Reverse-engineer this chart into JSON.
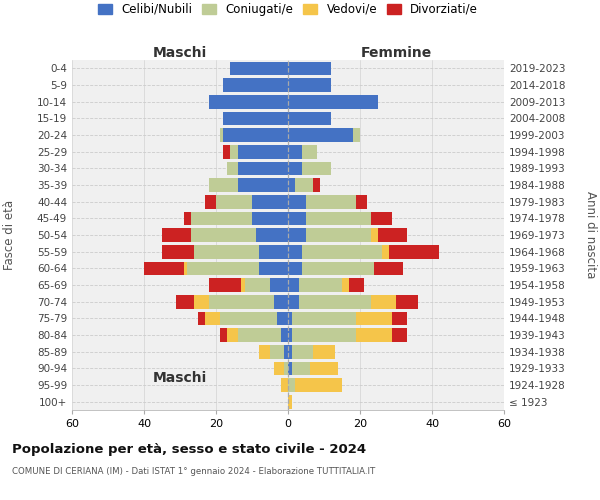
{
  "age_groups": [
    "100+",
    "95-99",
    "90-94",
    "85-89",
    "80-84",
    "75-79",
    "70-74",
    "65-69",
    "60-64",
    "55-59",
    "50-54",
    "45-49",
    "40-44",
    "35-39",
    "30-34",
    "25-29",
    "20-24",
    "15-19",
    "10-14",
    "5-9",
    "0-4"
  ],
  "birth_years": [
    "≤ 1923",
    "1924-1928",
    "1929-1933",
    "1934-1938",
    "1939-1943",
    "1944-1948",
    "1949-1953",
    "1954-1958",
    "1959-1963",
    "1964-1968",
    "1969-1973",
    "1974-1978",
    "1979-1983",
    "1984-1988",
    "1989-1993",
    "1994-1998",
    "1999-2003",
    "2004-2008",
    "2009-2013",
    "2014-2018",
    "2019-2023"
  ],
  "colors": {
    "celibi": "#4472C4",
    "coniugati": "#BFCC96",
    "vedovi": "#F5C54A",
    "divorziati": "#CC2222"
  },
  "maschi": {
    "celibi": [
      0,
      0,
      0,
      1,
      2,
      3,
      4,
      5,
      8,
      8,
      9,
      10,
      10,
      14,
      14,
      14,
      18,
      18,
      22,
      18,
      16
    ],
    "coniugati": [
      0,
      0,
      1,
      4,
      12,
      16,
      18,
      7,
      20,
      18,
      18,
      17,
      10,
      8,
      3,
      2,
      1,
      0,
      0,
      0,
      0
    ],
    "vedovi": [
      0,
      2,
      3,
      3,
      3,
      4,
      4,
      1,
      1,
      0,
      0,
      0,
      0,
      0,
      0,
      0,
      0,
      0,
      0,
      0,
      0
    ],
    "divorziati": [
      0,
      0,
      0,
      0,
      2,
      2,
      5,
      9,
      11,
      9,
      8,
      2,
      3,
      0,
      0,
      2,
      0,
      0,
      0,
      0,
      0
    ]
  },
  "femmine": {
    "celibi": [
      0,
      0,
      1,
      1,
      1,
      1,
      3,
      3,
      4,
      4,
      5,
      5,
      5,
      2,
      4,
      4,
      18,
      12,
      25,
      12,
      12
    ],
    "coniugati": [
      0,
      2,
      5,
      6,
      18,
      18,
      20,
      12,
      20,
      22,
      18,
      18,
      14,
      5,
      8,
      4,
      2,
      0,
      0,
      0,
      0
    ],
    "vedovi": [
      1,
      13,
      8,
      6,
      10,
      10,
      7,
      2,
      0,
      2,
      2,
      0,
      0,
      0,
      0,
      0,
      0,
      0,
      0,
      0,
      0
    ],
    "divorziati": [
      0,
      0,
      0,
      0,
      4,
      4,
      6,
      4,
      8,
      14,
      8,
      6,
      3,
      2,
      0,
      0,
      0,
      0,
      0,
      0,
      0
    ]
  },
  "xlim": 60,
  "title": "Popolazione per età, sesso e stato civile - 2024",
  "subtitle": "COMUNE DI CERIANA (IM) - Dati ISTAT 1° gennaio 2024 - Elaborazione TUTTITALIA.IT",
  "xlabel_left": "Maschi",
  "xlabel_right": "Femmine",
  "ylabel_left": "Fasce di età",
  "ylabel_right": "Anni di nascita",
  "legend_labels": [
    "Celibi/Nubili",
    "Coniugati/e",
    "Vedovi/e",
    "Divorziati/e"
  ],
  "bg_color": "#F0F0F0",
  "grid_color": "#CCCCCC"
}
